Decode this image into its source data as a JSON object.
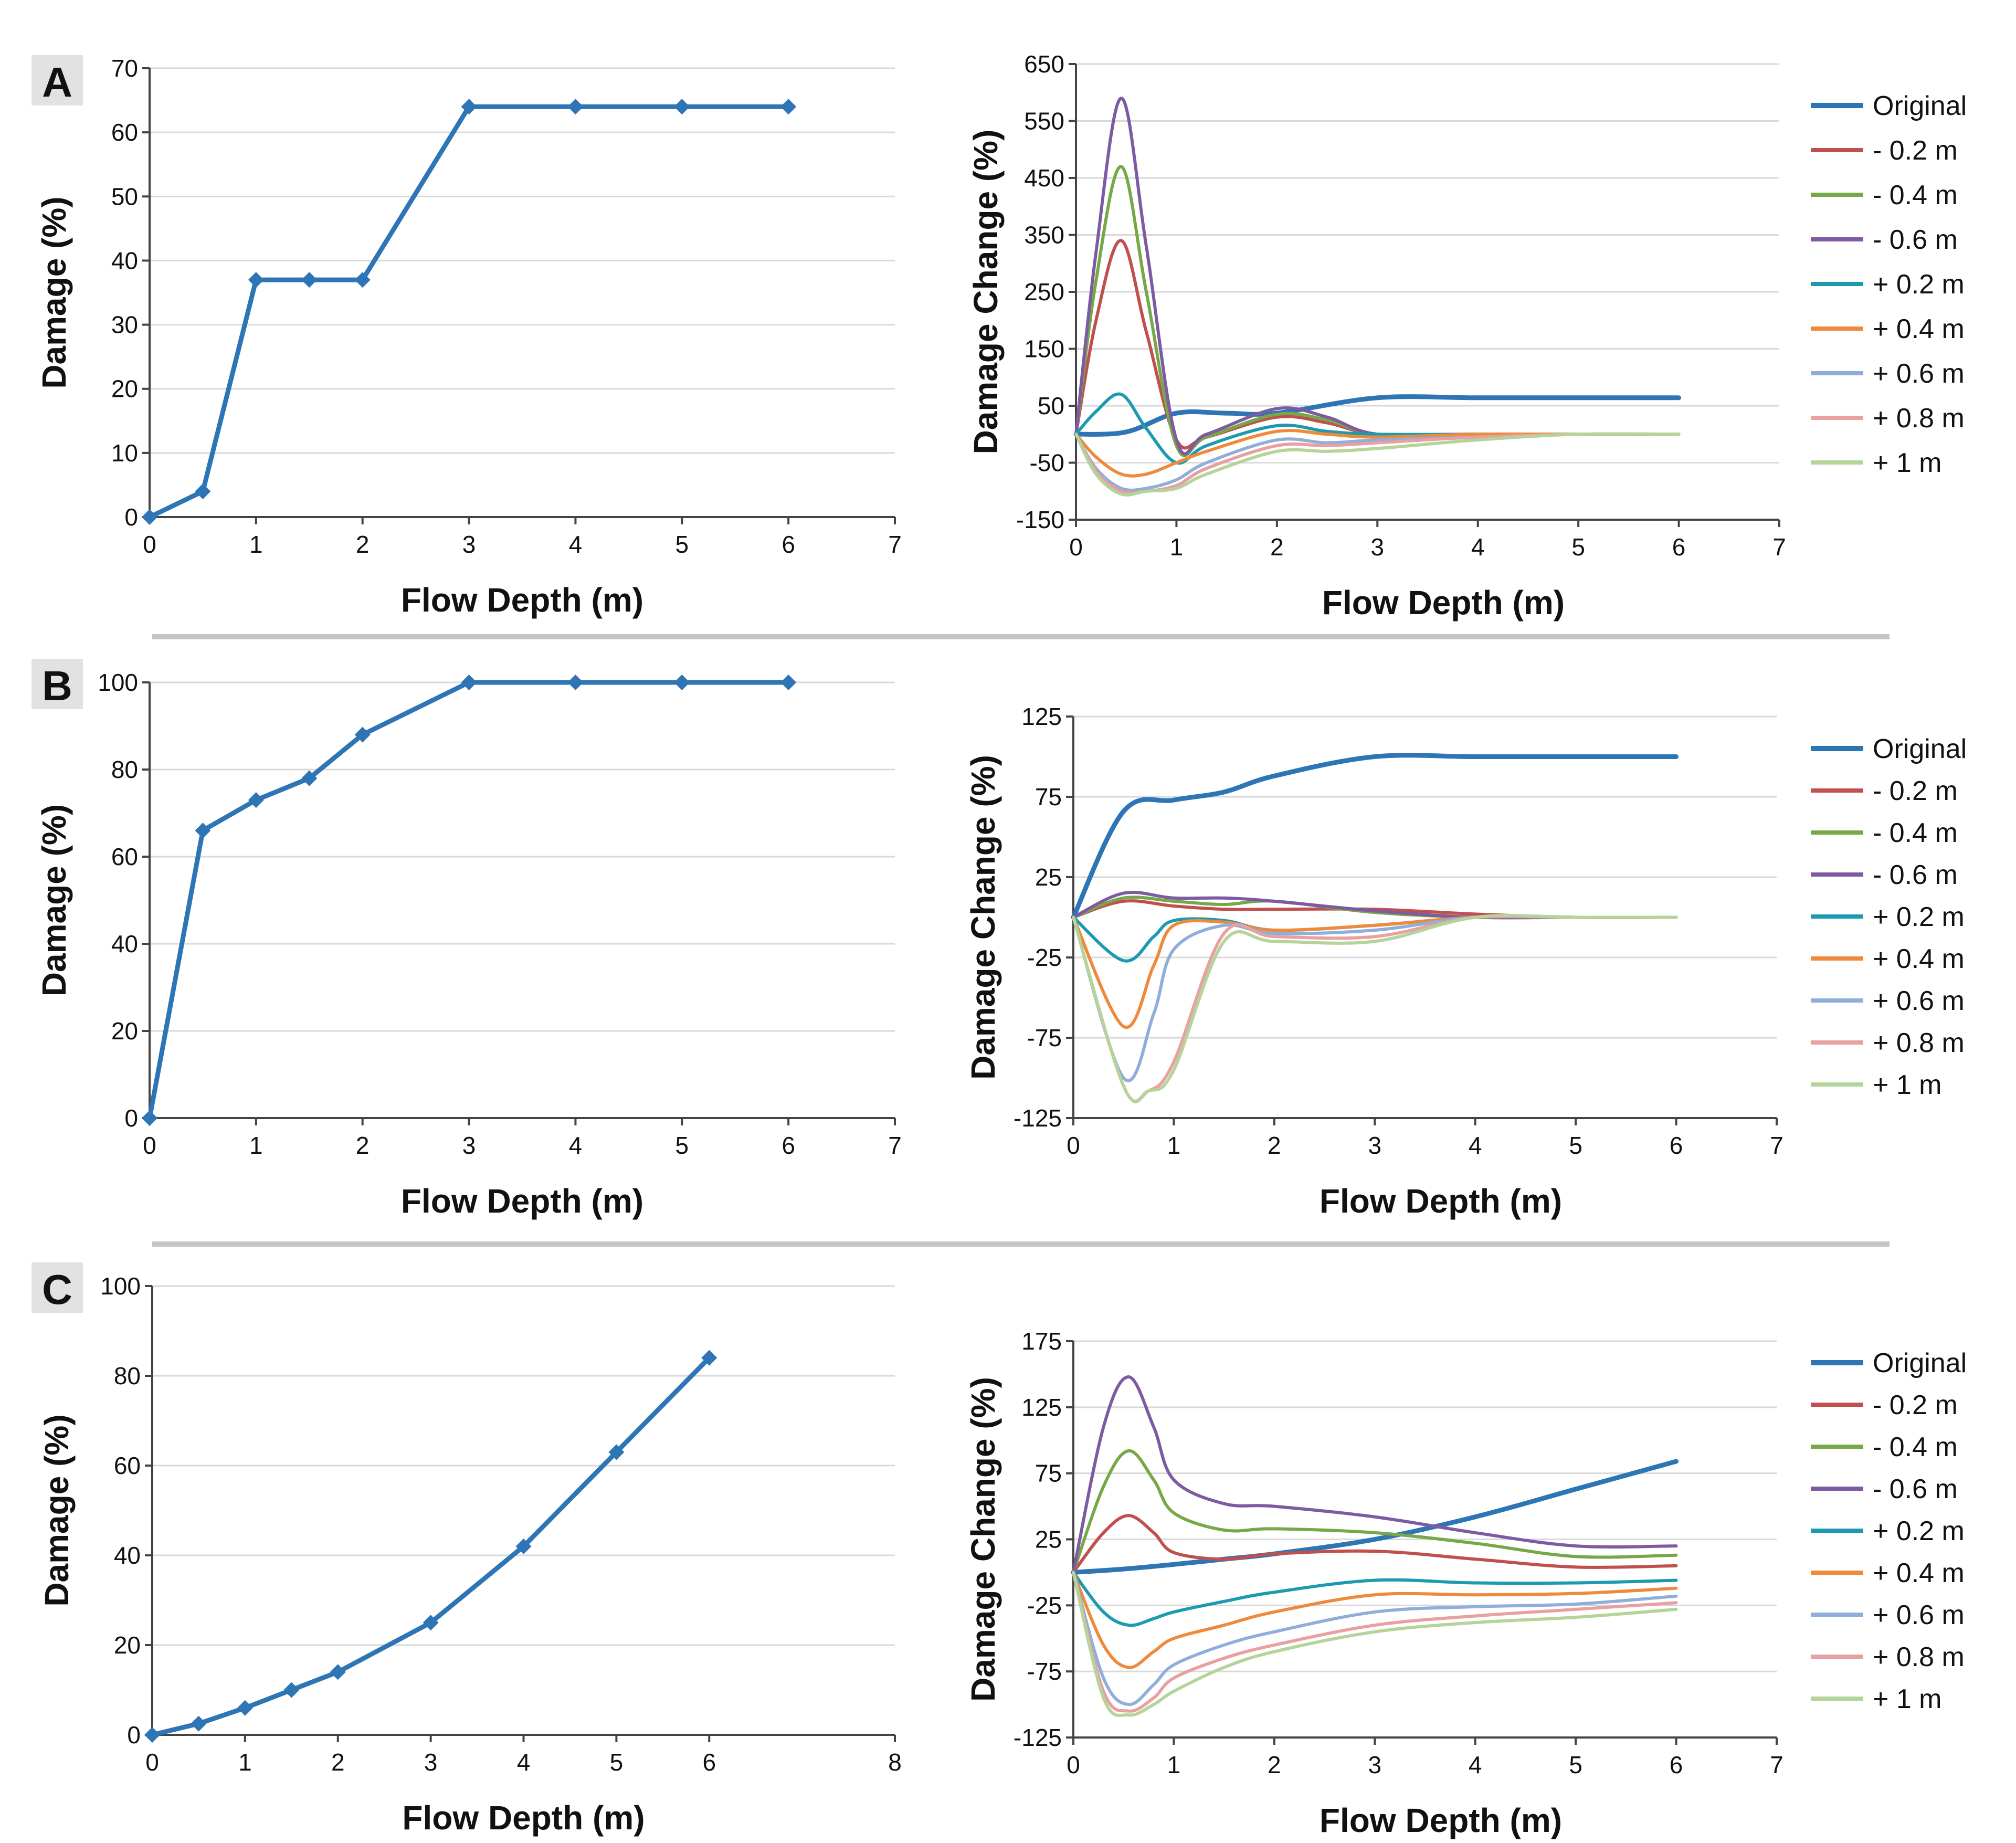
{
  "panel_labels": [
    "A",
    "B",
    "C"
  ],
  "colors": {
    "original": "#2e75b6",
    "-0.2 m": "#c0504d",
    "-0.4 m": "#77a847",
    "-0.6 m": "#7e5aa2",
    "+0.2 m": "#1c9bb0",
    "+0.4 m": "#ef8a3c",
    "+0.6 m": "#8faed9",
    "+0.8 m": "#e8a0a0",
    "+1 m": "#b4d49a"
  },
  "chart_data": [
    {
      "id": "A-left",
      "type": "line",
      "panel": "A",
      "xlabel": "Flow Depth (m)",
      "ylabel": "Damage (%)",
      "xlim": [
        0,
        7
      ],
      "xticks": [
        0,
        1,
        2,
        3,
        4,
        5,
        6,
        7
      ],
      "ylim": [
        0,
        70
      ],
      "yticks": [
        0,
        10,
        20,
        30,
        40,
        50,
        60,
        70
      ],
      "markers": true,
      "series": [
        {
          "name": "Damage",
          "x": [
            0,
            0.5,
            1,
            1.5,
            2,
            3,
            4,
            5,
            6
          ],
          "y": [
            0,
            4,
            37,
            37,
            37,
            64,
            64,
            64,
            64
          ]
        }
      ]
    },
    {
      "id": "A-right",
      "type": "line",
      "panel": "A",
      "xlabel": "Flow Depth (m)",
      "ylabel": "Damage Change (%)",
      "xlim": [
        0,
        7
      ],
      "xticks": [
        0,
        1,
        2,
        3,
        4,
        5,
        6,
        7
      ],
      "ylim": [
        -150,
        650
      ],
      "yticks": [
        -150,
        -50,
        50,
        150,
        250,
        350,
        450,
        550,
        650
      ],
      "legend_position": "right",
      "series": [
        {
          "name": "Original",
          "x": [
            0,
            0.5,
            1,
            1.5,
            2,
            3,
            4,
            5,
            6
          ],
          "y": [
            0,
            4,
            37,
            37,
            37,
            64,
            64,
            64,
            64
          ]
        },
        {
          "name": "- 0.2 m",
          "x": [
            0,
            0.2,
            0.45,
            0.7,
            1,
            1.3,
            2,
            2.5,
            3,
            4,
            5,
            6
          ],
          "y": [
            0,
            200,
            340,
            180,
            -10,
            -5,
            30,
            20,
            0,
            0,
            0,
            0
          ]
        },
        {
          "name": "- 0.4 m",
          "x": [
            0,
            0.2,
            0.45,
            0.7,
            1,
            1.3,
            2,
            2.5,
            3,
            4,
            5,
            6
          ],
          "y": [
            0,
            270,
            470,
            250,
            -20,
            -5,
            35,
            25,
            0,
            0,
            0,
            0
          ]
        },
        {
          "name": "- 0.6 m",
          "x": [
            0,
            0.2,
            0.45,
            0.7,
            1,
            1.3,
            2,
            2.5,
            3,
            4,
            5,
            6
          ],
          "y": [
            0,
            320,
            590,
            330,
            -10,
            0,
            45,
            30,
            0,
            0,
            0,
            0
          ]
        },
        {
          "name": "+ 0.2 m",
          "x": [
            0,
            0.2,
            0.45,
            0.7,
            1,
            1.3,
            2,
            2.5,
            3,
            4,
            5,
            6
          ],
          "y": [
            0,
            40,
            70,
            10,
            -50,
            -20,
            15,
            5,
            0,
            0,
            0,
            0
          ]
        },
        {
          "name": "+ 0.4 m",
          "x": [
            0,
            0.2,
            0.45,
            0.7,
            1,
            1.3,
            2,
            2.5,
            3,
            4,
            5,
            6
          ],
          "y": [
            0,
            -40,
            -70,
            -70,
            -50,
            -30,
            5,
            0,
            -5,
            0,
            0,
            0
          ]
        },
        {
          "name": "+ 0.6 m",
          "x": [
            0,
            0.2,
            0.45,
            0.7,
            1,
            1.3,
            2,
            2.5,
            3,
            4,
            5,
            6
          ],
          "y": [
            0,
            -60,
            -95,
            -95,
            -80,
            -50,
            -10,
            -15,
            -10,
            -5,
            0,
            0
          ]
        },
        {
          "name": "+ 0.8 m",
          "x": [
            0,
            0.2,
            0.45,
            0.7,
            1,
            1.3,
            2,
            2.5,
            3,
            4,
            5,
            6
          ],
          "y": [
            0,
            -65,
            -100,
            -100,
            -90,
            -60,
            -20,
            -20,
            -15,
            -5,
            0,
            0
          ]
        },
        {
          "name": "+ 1 m",
          "x": [
            0,
            0.2,
            0.45,
            0.7,
            1,
            1.3,
            2,
            2.5,
            3,
            4,
            5,
            6
          ],
          "y": [
            0,
            -70,
            -105,
            -100,
            -95,
            -70,
            -30,
            -30,
            -25,
            -10,
            0,
            0
          ]
        }
      ]
    },
    {
      "id": "B-left",
      "type": "line",
      "panel": "B",
      "xlabel": "Flow Depth (m)",
      "ylabel": "Damage (%)",
      "xlim": [
        0,
        7
      ],
      "xticks": [
        0,
        1,
        2,
        3,
        4,
        5,
        6,
        7
      ],
      "ylim": [
        0,
        100
      ],
      "yticks": [
        0,
        20,
        40,
        60,
        80,
        100
      ],
      "markers": true,
      "series": [
        {
          "name": "Damage",
          "x": [
            0,
            0.5,
            1,
            1.5,
            2,
            3,
            4,
            5,
            6
          ],
          "y": [
            0,
            66,
            73,
            78,
            88,
            100,
            100,
            100,
            100
          ]
        }
      ]
    },
    {
      "id": "B-right",
      "type": "line",
      "panel": "B",
      "xlabel": "Flow Depth (m)",
      "ylabel": "Damage Change (%)",
      "xlim": [
        0,
        7
      ],
      "xticks": [
        0,
        1,
        2,
        3,
        4,
        5,
        6,
        7
      ],
      "ylim": [
        -125,
        125
      ],
      "yticks": [
        -125,
        -75,
        -25,
        25,
        75,
        125
      ],
      "legend_position": "right",
      "series": [
        {
          "name": "Original",
          "x": [
            0,
            0.5,
            1,
            1.5,
            2,
            3,
            4,
            5,
            6
          ],
          "y": [
            0,
            66,
            73,
            78,
            88,
            100,
            100,
            100,
            100
          ]
        },
        {
          "name": "- 0.2 m",
          "x": [
            0,
            0.5,
            1,
            1.5,
            2,
            3,
            4,
            5,
            6
          ],
          "y": [
            0,
            10,
            7,
            5,
            5,
            5,
            2,
            0,
            0
          ]
        },
        {
          "name": "- 0.4 m",
          "x": [
            0,
            0.5,
            1,
            1.5,
            2,
            3,
            4,
            5,
            6
          ],
          "y": [
            0,
            12,
            10,
            8,
            10,
            3,
            0,
            0,
            0
          ]
        },
        {
          "name": "- 0.6 m",
          "x": [
            0,
            0.5,
            1,
            1.5,
            2,
            3,
            4,
            5,
            6
          ],
          "y": [
            0,
            15,
            12,
            12,
            10,
            4,
            0,
            0,
            0
          ]
        },
        {
          "name": "+ 0.2 m",
          "x": [
            0,
            0.5,
            0.8,
            1,
            1.5,
            2,
            3,
            4,
            5,
            6
          ],
          "y": [
            0,
            -27,
            -12,
            -2,
            -2,
            -8,
            -5,
            0,
            0,
            0
          ]
        },
        {
          "name": "+ 0.4 m",
          "x": [
            0,
            0.5,
            0.8,
            1,
            1.5,
            2,
            3,
            4,
            5,
            6
          ],
          "y": [
            0,
            -68,
            -30,
            -5,
            -3,
            -8,
            -5,
            0,
            0,
            0
          ]
        },
        {
          "name": "+ 0.6 m",
          "x": [
            0,
            0.5,
            0.8,
            1,
            1.5,
            2,
            3,
            4,
            5,
            6
          ],
          "y": [
            0,
            -100,
            -60,
            -20,
            -5,
            -10,
            -8,
            0,
            0,
            0
          ]
        },
        {
          "name": "+ 0.8 m",
          "x": [
            0,
            0.5,
            0.75,
            1,
            1.5,
            2,
            3,
            4,
            5,
            6
          ],
          "y": [
            0,
            -105,
            -108,
            -90,
            -10,
            -12,
            -12,
            0,
            0,
            0
          ]
        },
        {
          "name": "+ 1 m",
          "x": [
            0,
            0.5,
            0.75,
            1,
            1.5,
            2,
            3,
            4,
            5,
            6
          ],
          "y": [
            0,
            -105,
            -108,
            -95,
            -15,
            -15,
            -15,
            0,
            0,
            0
          ]
        }
      ]
    },
    {
      "id": "C-left",
      "type": "line",
      "panel": "C",
      "xlabel": "Flow Depth (m)",
      "ylabel": "Damage (%)",
      "xlim": [
        0,
        8
      ],
      "xticks": [
        0,
        1,
        2,
        3,
        4,
        5,
        6,
        8
      ],
      "ylim": [
        0,
        100
      ],
      "yticks": [
        0,
        20,
        40,
        60,
        80,
        100
      ],
      "markers": true,
      "series": [
        {
          "name": "Damage",
          "x": [
            0,
            0.5,
            1,
            1.5,
            2,
            3,
            4,
            5,
            6
          ],
          "y": [
            0,
            2.5,
            6,
            10,
            14,
            25,
            42,
            63,
            84
          ]
        }
      ]
    },
    {
      "id": "C-right",
      "type": "line",
      "panel": "C",
      "xlabel": "Flow Depth (m)",
      "ylabel": "Damage Change (%)",
      "xlim": [
        0,
        7
      ],
      "xticks": [
        0,
        1,
        2,
        3,
        4,
        5,
        6,
        7
      ],
      "ylim": [
        -125,
        175
      ],
      "yticks": [
        -125,
        -75,
        -25,
        25,
        75,
        125,
        175
      ],
      "legend_position": "right",
      "series": [
        {
          "name": "Original",
          "x": [
            0,
            0.5,
            1,
            1.5,
            2,
            3,
            4,
            5,
            6
          ],
          "y": [
            0,
            2.5,
            6,
            10,
            14,
            25,
            42,
            63,
            84
          ]
        },
        {
          "name": "- 0.2 m",
          "x": [
            0,
            0.3,
            0.55,
            0.8,
            1,
            1.5,
            2,
            3,
            4,
            5,
            6
          ],
          "y": [
            0,
            30,
            43,
            30,
            15,
            10,
            14,
            16,
            10,
            4,
            5
          ]
        },
        {
          "name": "- 0.4 m",
          "x": [
            0,
            0.3,
            0.55,
            0.8,
            1,
            1.5,
            2,
            3,
            4,
            5,
            6
          ],
          "y": [
            0,
            65,
            92,
            70,
            45,
            32,
            33,
            30,
            22,
            12,
            13
          ]
        },
        {
          "name": "- 0.6 m",
          "x": [
            0,
            0.3,
            0.55,
            0.8,
            1,
            1.5,
            2,
            3,
            4,
            5,
            6
          ],
          "y": [
            0,
            110,
            148,
            110,
            70,
            52,
            50,
            42,
            30,
            20,
            20
          ]
        },
        {
          "name": "+ 0.2 m",
          "x": [
            0,
            0.3,
            0.55,
            0.8,
            1,
            1.5,
            2,
            3,
            4,
            5,
            6
          ],
          "y": [
            0,
            -30,
            -40,
            -35,
            -30,
            -22,
            -15,
            -6,
            -8,
            -8,
            -6
          ]
        },
        {
          "name": "+ 0.4 m",
          "x": [
            0,
            0.3,
            0.55,
            0.8,
            1,
            1.5,
            2,
            3,
            4,
            5,
            6
          ],
          "y": [
            0,
            -55,
            -72,
            -60,
            -50,
            -40,
            -30,
            -17,
            -17,
            -16,
            -12
          ]
        },
        {
          "name": "+ 0.6 m",
          "x": [
            0,
            0.3,
            0.55,
            0.8,
            1,
            1.5,
            2,
            3,
            4,
            5,
            6
          ],
          "y": [
            0,
            -80,
            -100,
            -85,
            -70,
            -55,
            -45,
            -30,
            -26,
            -24,
            -18
          ]
        },
        {
          "name": "+ 0.8 m",
          "x": [
            0,
            0.3,
            0.55,
            0.8,
            1,
            1.5,
            2,
            3,
            4,
            5,
            6
          ],
          "y": [
            0,
            -90,
            -105,
            -95,
            -80,
            -65,
            -55,
            -40,
            -33,
            -28,
            -23
          ]
        },
        {
          "name": "+ 1 m",
          "x": [
            0,
            0.3,
            0.55,
            0.8,
            1,
            1.5,
            2,
            3,
            4,
            5,
            6
          ],
          "y": [
            0,
            -95,
            -108,
            -100,
            -90,
            -72,
            -60,
            -45,
            -38,
            -34,
            -28
          ]
        }
      ]
    }
  ]
}
